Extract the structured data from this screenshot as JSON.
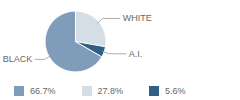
{
  "chart_data": {
    "type": "pie",
    "categories": [
      "BLACK",
      "WHITE",
      "A.I."
    ],
    "values": [
      66.7,
      27.8,
      5.6
    ],
    "value_labels": [
      "66.7%",
      "27.8%",
      "5.6%"
    ],
    "colors": [
      "#7f9dbb",
      "#d5dde6",
      "#2f5f87"
    ],
    "legend": "bottom"
  }
}
